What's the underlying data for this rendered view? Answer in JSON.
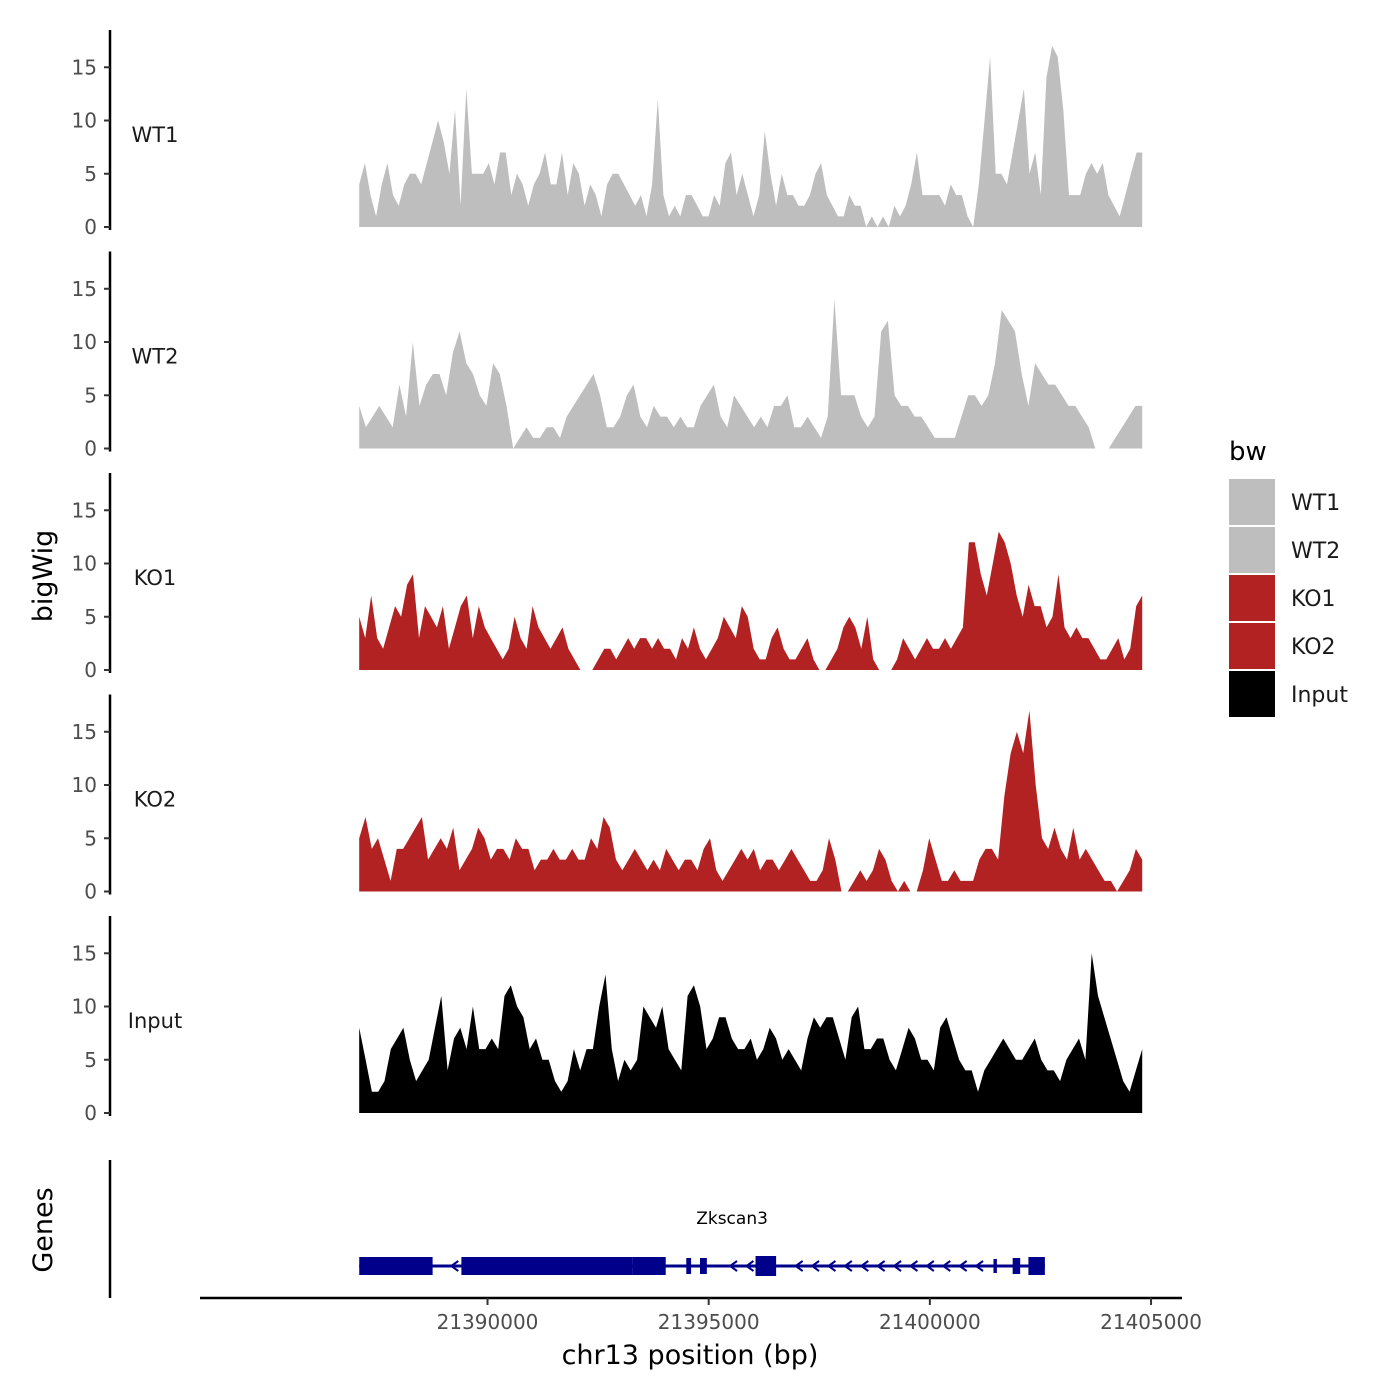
{
  "chart_data": {
    "type": "area",
    "title": "",
    "xlabel": "chr13 position (bp)",
    "ylabel": "bigWig",
    "genes_label": "Genes",
    "x_range": [
      21387100,
      21404800
    ],
    "xlim": [
      21383500,
      21405700
    ],
    "x_ticks": [
      "21390000",
      "21395000",
      "21400000",
      "21405000"
    ],
    "x_tick_values": [
      21390000,
      21395000,
      21400000,
      21405000
    ],
    "ylim": [
      0,
      18.5
    ],
    "y_ticks": [
      "0",
      "5",
      "10",
      "15"
    ],
    "y_tick_values": [
      0,
      5,
      10,
      15
    ],
    "legend": {
      "title": "bw",
      "entries": [
        {
          "label": "WT1",
          "color": "#BEBEBE"
        },
        {
          "label": "WT2",
          "color": "#BEBEBE"
        },
        {
          "label": "KO1",
          "color": "#B22222"
        },
        {
          "label": "KO2",
          "color": "#B22222"
        },
        {
          "label": "Input",
          "color": "#000000"
        }
      ]
    },
    "series": [
      {
        "name": "WT1",
        "color": "#BEBEBE",
        "values": [
          4,
          6,
          3,
          1,
          4,
          6,
          3,
          2,
          4,
          5,
          5,
          4,
          6,
          8,
          10,
          8,
          5,
          11,
          2,
          13,
          5,
          5,
          5,
          6,
          4,
          7,
          7,
          3,
          5,
          4,
          2,
          4,
          5,
          7,
          4,
          4,
          7,
          3,
          6,
          5,
          2,
          4,
          3,
          1,
          4,
          5,
          5,
          4,
          3,
          2,
          3,
          1,
          4,
          12,
          3,
          1,
          2,
          1,
          3,
          3,
          2,
          1,
          1,
          3,
          2,
          6,
          7,
          3,
          5,
          3,
          1,
          3,
          9,
          5,
          2,
          5,
          3,
          3,
          2,
          2,
          3,
          5,
          6,
          3,
          2,
          1,
          1,
          3,
          2,
          2,
          0,
          1,
          0,
          1,
          0,
          2,
          1,
          2,
          4,
          7,
          3,
          3,
          3,
          3,
          2,
          4,
          3,
          3,
          1,
          0,
          4,
          10,
          16,
          5,
          5,
          4,
          7,
          10,
          13,
          5,
          7,
          3,
          14,
          17,
          16,
          11,
          3,
          3,
          3,
          5,
          6,
          5,
          6,
          3,
          2,
          1,
          3,
          5,
          7,
          7
        ]
      },
      {
        "name": "WT2",
        "color": "#BEBEBE",
        "values": [
          4,
          2,
          3,
          4,
          3,
          2,
          6,
          3,
          10,
          4,
          6,
          7,
          7,
          5,
          9,
          11,
          8,
          7,
          5,
          4,
          8,
          7,
          4,
          0,
          1,
          2,
          1,
          1,
          2,
          2,
          1,
          3,
          4,
          5,
          6,
          7,
          5,
          2,
          2,
          3,
          5,
          6,
          3,
          2,
          4,
          3,
          3,
          2,
          3,
          2,
          2,
          4,
          5,
          6,
          3,
          2,
          5,
          4,
          3,
          2,
          3,
          2,
          4,
          4,
          5,
          2,
          2,
          3,
          2,
          1,
          3,
          14,
          5,
          5,
          5,
          3,
          2,
          3,
          11,
          12,
          5,
          4,
          4,
          3,
          3,
          2,
          1,
          1,
          1,
          1,
          3,
          5,
          5,
          4,
          5,
          8,
          13,
          12,
          11,
          7,
          4,
          8,
          7,
          6,
          6,
          5,
          4,
          4,
          3,
          2,
          0,
          0,
          0,
          1,
          2,
          3,
          4,
          4
        ]
      },
      {
        "name": "KO1",
        "color": "#B22222",
        "values": [
          5,
          3,
          7,
          3,
          2,
          4,
          6,
          5,
          8,
          9,
          3,
          6,
          5,
          4,
          6,
          2,
          4,
          6,
          7,
          3,
          6,
          4,
          3,
          2,
          1,
          2,
          5,
          3,
          2,
          6,
          4,
          3,
          2,
          3,
          4,
          2,
          1,
          0,
          0,
          0,
          1,
          2,
          2,
          1,
          2,
          3,
          2,
          3,
          3,
          2,
          3,
          2,
          2,
          1,
          3,
          2,
          4,
          2,
          1,
          2,
          3,
          5,
          4,
          3,
          6,
          5,
          2,
          1,
          1,
          3,
          4,
          2,
          1,
          1,
          2,
          3,
          1,
          0,
          0,
          1,
          2,
          4,
          5,
          4,
          2,
          5,
          1,
          0,
          0,
          0,
          1,
          3,
          2,
          1,
          2,
          3,
          2,
          2,
          3,
          2,
          3,
          4,
          12,
          12,
          9,
          7,
          10,
          13,
          12,
          10,
          7,
          5,
          8,
          6,
          6,
          4,
          5,
          9,
          4,
          3,
          4,
          3,
          3,
          2,
          1,
          1,
          2,
          3,
          1,
          2,
          6,
          7
        ]
      },
      {
        "name": "KO2",
        "color": "#B22222",
        "values": [
          5,
          7,
          4,
          5,
          3,
          1,
          4,
          4,
          5,
          6,
          7,
          3,
          4,
          5,
          4,
          6,
          2,
          3,
          4,
          6,
          5,
          3,
          4,
          4,
          3,
          5,
          4,
          4,
          2,
          3,
          3,
          4,
          3,
          3,
          4,
          3,
          3,
          5,
          4,
          7,
          6,
          3,
          2,
          3,
          4,
          3,
          2,
          3,
          2,
          4,
          3,
          2,
          3,
          3,
          2,
          4,
          5,
          2,
          1,
          2,
          3,
          4,
          3,
          4,
          2,
          3,
          3,
          2,
          3,
          4,
          3,
          2,
          1,
          1,
          2,
          5,
          3,
          0,
          0,
          1,
          2,
          1,
          2,
          4,
          3,
          1,
          0,
          1,
          0,
          0,
          2,
          5,
          3,
          1,
          1,
          2,
          1,
          1,
          1,
          3,
          4,
          4,
          3,
          9,
          13,
          15,
          13,
          17,
          10,
          5,
          4,
          6,
          4,
          3,
          6,
          3,
          4,
          3,
          2,
          1,
          1,
          0,
          1,
          2,
          4,
          3
        ]
      },
      {
        "name": "Input",
        "color": "#000000",
        "values": [
          8,
          5,
          2,
          2,
          3,
          6,
          7,
          8,
          5,
          3,
          4,
          5,
          8,
          11,
          4,
          7,
          8,
          6,
          10,
          6,
          6,
          7,
          6,
          11,
          12,
          10,
          9,
          6,
          7,
          5,
          5,
          3,
          2,
          3,
          6,
          4,
          6,
          6,
          10,
          13,
          6,
          3,
          5,
          4,
          5,
          10,
          9,
          8,
          10,
          6,
          5,
          4,
          11,
          12,
          10,
          6,
          7,
          9,
          9,
          7,
          6,
          6,
          7,
          5,
          6,
          8,
          7,
          5,
          6,
          5,
          4,
          7,
          9,
          8,
          9,
          9,
          7,
          5,
          9,
          10,
          6,
          6,
          7,
          7,
          5,
          4,
          6,
          8,
          7,
          5,
          5,
          4,
          8,
          9,
          7,
          5,
          4,
          4,
          2,
          4,
          5,
          6,
          7,
          6,
          5,
          5,
          6,
          7,
          5,
          4,
          4,
          3,
          5,
          6,
          7,
          5,
          15,
          11,
          9,
          7,
          5,
          3,
          2,
          4,
          6
        ]
      }
    ],
    "gene": {
      "name": "Zkscan3",
      "strand": "-",
      "color": "#00008B",
      "start": 21387100,
      "end": 21402600
    }
  }
}
